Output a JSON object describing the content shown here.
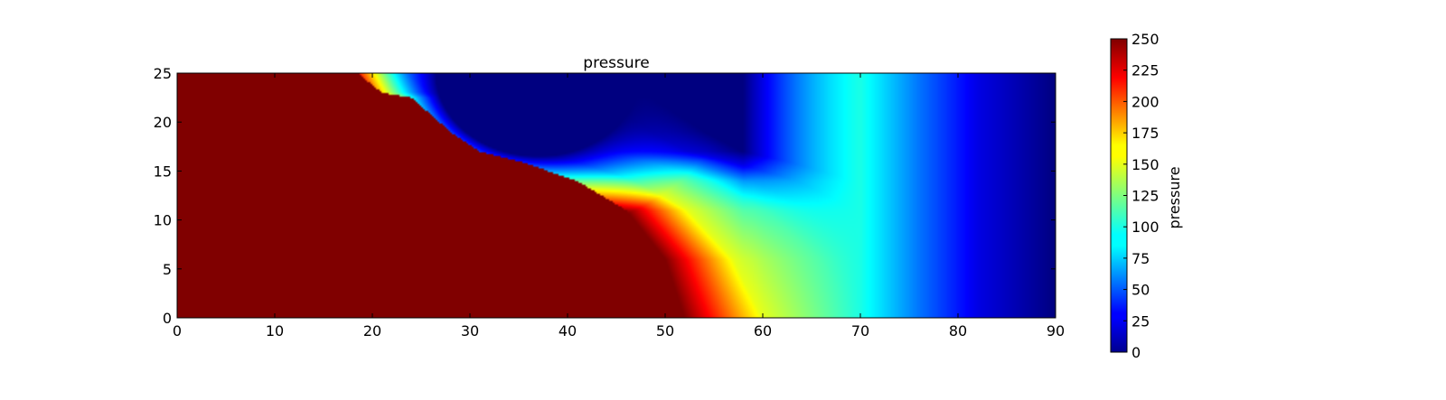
{
  "chart_data": {
    "type": "heatmap",
    "title": "pressure",
    "xlabel": "",
    "ylabel": "",
    "xlim": [
      0,
      90
    ],
    "ylim": [
      0,
      25
    ],
    "x_ticks": [
      "0",
      "10",
      "20",
      "30",
      "40",
      "50",
      "60",
      "70",
      "80",
      "90"
    ],
    "y_ticks": [
      "0",
      "5",
      "10",
      "15",
      "20",
      "25"
    ],
    "colorbar": {
      "label": "pressure",
      "range": [
        0,
        250
      ],
      "ticks": [
        "0",
        "25",
        "50",
        "75",
        "100",
        "125",
        "150",
        "175",
        "200",
        "225",
        "250"
      ],
      "colormap": "jet"
    },
    "field": {
      "description_values": "pressure field over x in [0,90], y in [0,25]",
      "saturated_region_value": 250,
      "low_pressure_pocket_value": 0,
      "far_right_value": 0,
      "front_contour_points": [
        {
          "x": 18.5,
          "y": 25
        },
        {
          "x": 21,
          "y": 23
        },
        {
          "x": 24,
          "y": 22.5
        },
        {
          "x": 28,
          "y": 19
        },
        {
          "x": 31,
          "y": 17
        },
        {
          "x": 35,
          "y": 16
        },
        {
          "x": 41,
          "y": 14
        },
        {
          "x": 46,
          "y": 11
        },
        {
          "x": 50,
          "y": 6
        },
        {
          "x": 52,
          "y": 0
        }
      ],
      "pocket_center": {
        "x": 37,
        "y": 25
      },
      "contour_samples_bottom_row": [
        {
          "x": 52,
          "value": 250
        },
        {
          "x": 56,
          "value": 200
        },
        {
          "x": 60,
          "value": 150
        },
        {
          "x": 70,
          "value": 100
        },
        {
          "x": 76,
          "value": 60
        },
        {
          "x": 82,
          "value": 25
        },
        {
          "x": 90,
          "value": 0
        }
      ]
    }
  }
}
